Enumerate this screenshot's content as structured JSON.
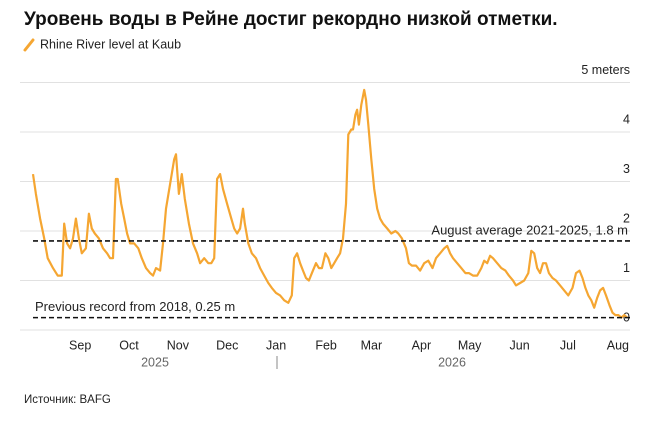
{
  "chart_data": {
    "type": "line",
    "title": "Уровень воды в Рейне достиг рекордно низкой отметки.",
    "source": "Источник: BAFG",
    "year_labels": [
      "2025",
      "2026"
    ],
    "xlim": [
      2025.58,
      2026.605
    ],
    "ylim": [
      0,
      5
    ],
    "yticks": [
      0,
      1,
      2,
      3,
      4,
      {
        "value": 5,
        "label": "5 meters"
      }
    ],
    "xticks": [
      {
        "value": 2025.667,
        "label": "Sep"
      },
      {
        "value": 2025.75,
        "label": "Oct"
      },
      {
        "value": 2025.833,
        "label": "Nov"
      },
      {
        "value": 2025.917,
        "label": "Dec"
      },
      {
        "value": 2026.0,
        "label": "Jan"
      },
      {
        "value": 2026.085,
        "label": "Feb"
      },
      {
        "value": 2026.162,
        "label": "Mar"
      },
      {
        "value": 2026.247,
        "label": "Apr"
      },
      {
        "value": 2026.329,
        "label": "May"
      },
      {
        "value": 2026.414,
        "label": "Jun"
      },
      {
        "value": 2026.496,
        "label": "Jul"
      },
      {
        "value": 2026.581,
        "label": "Aug"
      }
    ],
    "grid": true,
    "reference_lines": [
      {
        "label": "August average 2021-2025, 1.8 m",
        "value": 1.8
      },
      {
        "label": "Previous record from 2018, 0.25 m",
        "value": 0.25
      }
    ],
    "series": [
      {
        "name": "Rhine River level at Kaub",
        "color": "#f5a632",
        "x": [
          2025.58,
          2025.585,
          2025.592,
          2025.599,
          2025.605,
          2025.614,
          2025.622,
          2025.629,
          2025.633,
          2025.638,
          2025.643,
          2025.648,
          2025.653,
          2025.658,
          2025.663,
          2025.67,
          2025.675,
          2025.68,
          2025.685,
          2025.692,
          2025.699,
          2025.706,
          2025.711,
          2025.716,
          2025.721,
          2025.724,
          2025.73,
          2025.735,
          2025.74,
          2025.745,
          2025.752,
          2025.759,
          2025.765,
          2025.772,
          2025.779,
          2025.784,
          2025.789,
          2025.796,
          2025.801,
          2025.806,
          2025.813,
          2025.82,
          2025.823,
          2025.828,
          2025.833,
          2025.838,
          2025.845,
          2025.852,
          2025.859,
          2025.864,
          2025.871,
          2025.878,
          2025.883,
          2025.888,
          2025.893,
          2025.898,
          2025.903,
          2025.91,
          2025.917,
          2025.922,
          2025.927,
          2025.932,
          2025.937,
          2025.94,
          2025.946,
          2025.952,
          2025.959,
          2025.966,
          2025.973,
          2025.98,
          2025.986,
          2025.993,
          2026.0,
          2026.007,
          2026.014,
          2026.02,
          2026.024,
          2026.029,
          2026.034,
          2026.039,
          2026.044,
          2026.049,
          2026.054,
          2026.061,
          2026.066,
          2026.071,
          2026.077,
          2026.082,
          2026.087,
          2026.092,
          2026.097,
          2026.102,
          2026.107,
          2026.112,
          2026.116,
          2026.121,
          2026.124,
          2026.128,
          2026.131,
          2026.134,
          2026.138,
          2026.143,
          2026.146,
          2026.15,
          2026.155,
          2026.16,
          2026.165,
          2026.17,
          2026.175,
          2026.182,
          2026.189,
          2026.196,
          2026.201,
          2026.207,
          2026.214,
          2026.219,
          2026.224,
          2026.231,
          2026.238,
          2026.245,
          2026.252,
          2026.259,
          2026.265,
          2026.272,
          2026.279,
          2026.284,
          2026.289,
          2026.294,
          2026.301,
          2026.308,
          2026.315,
          2026.321,
          2026.328,
          2026.335,
          2026.342,
          2026.347,
          2026.352,
          2026.357,
          2026.362,
          2026.369,
          2026.376,
          2026.383,
          2026.389,
          2026.396,
          2026.401,
          2026.408,
          2026.415,
          2026.422,
          2026.427,
          2026.432,
          2026.437,
          2026.442,
          2026.447,
          2026.452,
          2026.457,
          2026.463,
          2026.469,
          2026.476,
          2026.483,
          2026.49,
          2026.497,
          2026.503,
          2026.509,
          2026.514,
          2026.519,
          2026.524,
          2026.529,
          2026.534,
          2026.539,
          2026.544,
          2026.549,
          2026.554,
          2026.56,
          2026.565,
          2026.57,
          2026.575,
          2026.58,
          2026.585,
          2026.59
        ],
        "values": [
          3.15,
          2.75,
          2.25,
          1.85,
          1.45,
          1.25,
          1.1,
          1.1,
          2.15,
          1.75,
          1.65,
          1.85,
          2.25,
          1.85,
          1.55,
          1.65,
          2.35,
          2.05,
          1.95,
          1.85,
          1.65,
          1.55,
          1.45,
          1.45,
          3.05,
          3.05,
          2.55,
          2.25,
          1.95,
          1.75,
          1.75,
          1.65,
          1.45,
          1.25,
          1.15,
          1.1,
          1.25,
          1.2,
          1.75,
          2.45,
          2.95,
          3.45,
          3.55,
          2.75,
          3.15,
          2.65,
          2.15,
          1.75,
          1.55,
          1.35,
          1.45,
          1.35,
          1.35,
          1.45,
          3.05,
          3.15,
          2.85,
          2.55,
          2.25,
          2.05,
          1.95,
          2.05,
          2.45,
          2.15,
          1.75,
          1.55,
          1.45,
          1.25,
          1.1,
          0.95,
          0.85,
          0.75,
          0.7,
          0.6,
          0.55,
          0.7,
          1.45,
          1.55,
          1.35,
          1.2,
          1.05,
          1.0,
          1.15,
          1.35,
          1.25,
          1.25,
          1.55,
          1.45,
          1.25,
          1.35,
          1.45,
          1.55,
          1.85,
          2.55,
          3.95,
          4.05,
          4.05,
          4.35,
          4.45,
          4.15,
          4.55,
          4.85,
          4.65,
          4.15,
          3.45,
          2.85,
          2.45,
          2.25,
          2.15,
          2.05,
          1.95,
          2.0,
          1.95,
          1.85,
          1.65,
          1.35,
          1.3,
          1.3,
          1.2,
          1.35,
          1.4,
          1.25,
          1.45,
          1.55,
          1.65,
          1.7,
          1.55,
          1.45,
          1.35,
          1.25,
          1.15,
          1.15,
          1.1,
          1.1,
          1.25,
          1.4,
          1.35,
          1.5,
          1.45,
          1.35,
          1.25,
          1.2,
          1.1,
          1.0,
          0.9,
          0.95,
          1.0,
          1.15,
          1.6,
          1.55,
          1.25,
          1.15,
          1.35,
          1.35,
          1.15,
          1.05,
          1.0,
          0.9,
          0.8,
          0.7,
          0.85,
          1.15,
          1.2,
          1.05,
          0.85,
          0.7,
          0.6,
          0.45,
          0.65,
          0.8,
          0.85,
          0.7,
          0.5,
          0.35,
          0.3,
          0.3,
          0.25,
          0.3,
          0.25
        ]
      }
    ]
  }
}
